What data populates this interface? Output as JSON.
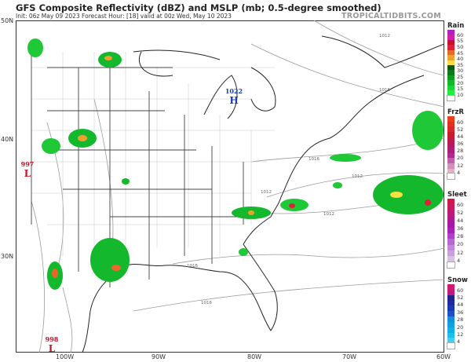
{
  "header": {
    "title": "GFS Composite Reflectivity (dBZ) and MSLP (mb; 0.5-degree smoothed)",
    "subtitle": "Init: 06z May 09 2023   Forecast Hour: [18]   valid at 00z Wed, May 10 2023",
    "brand": "TROPICALTIDBITS.COM"
  },
  "axes": {
    "latitudes": [
      "50N",
      "40N",
      "30N"
    ],
    "longitudes": [
      "100W",
      "90W",
      "80W",
      "70W",
      "60W"
    ]
  },
  "pressure_centers": [
    {
      "type": "H",
      "value": "1022",
      "color": "#1a3fb0"
    },
    {
      "type": "L",
      "value": "997",
      "color": "#c0142a"
    },
    {
      "type": "L",
      "value": "998",
      "color": "#c0142a"
    }
  ],
  "isobar_labels": [
    "1012",
    "1016",
    "1016",
    "1012",
    "1012",
    "1012",
    "1016",
    "1016"
  ],
  "legends": [
    {
      "title": "Rain",
      "labels": [
        "60",
        "55",
        "50",
        "45",
        "40",
        "35",
        "30",
        "25",
        "20",
        "15",
        "10"
      ],
      "colors": [
        "#b21ec4",
        "#d21fa8",
        "#c8102e",
        "#e0203a",
        "#e8682a",
        "#f0a030",
        "#f8e040",
        "#0a5a14",
        "#0a7a1a",
        "#0f9a22",
        "#14b82c",
        "#18d436",
        "#1ff040",
        "#ffffff"
      ]
    },
    {
      "title": "FrzR",
      "labels": [
        "60",
        "52",
        "44",
        "36",
        "28",
        "20",
        "12",
        "4"
      ],
      "colors": [
        "#e8401e",
        "#e03020",
        "#d82828",
        "#c81c30",
        "#c0184a",
        "#b81860",
        "#b01c7a",
        "#b02890",
        "#c060a8",
        "#d090b8",
        "#e0b0c4",
        "#ffffff"
      ]
    },
    {
      "title": "Sleet",
      "labels": [
        "60",
        "52",
        "44",
        "36",
        "28",
        "20",
        "12",
        "4"
      ],
      "colors": [
        "#d01848",
        "#c81860",
        "#c01878",
        "#b01890",
        "#a818a8",
        "#a820b8",
        "#b040c8",
        "#b868d0",
        "#c088d8",
        "#c8a0dc",
        "#d8c0e4",
        "#ffffff"
      ]
    },
    {
      "title": "Snow",
      "labels": [
        "60",
        "52",
        "44",
        "36",
        "28",
        "20",
        "12",
        "4"
      ],
      "colors": [
        "#d01870",
        "#c01880",
        "#1c2490",
        "#1c2ca0",
        "#1c38b0",
        "#2050c8",
        "#1090d8",
        "#10a0e0",
        "#10b0e8",
        "#18c0ef",
        "#40d0f4",
        "#ffffff"
      ]
    }
  ]
}
